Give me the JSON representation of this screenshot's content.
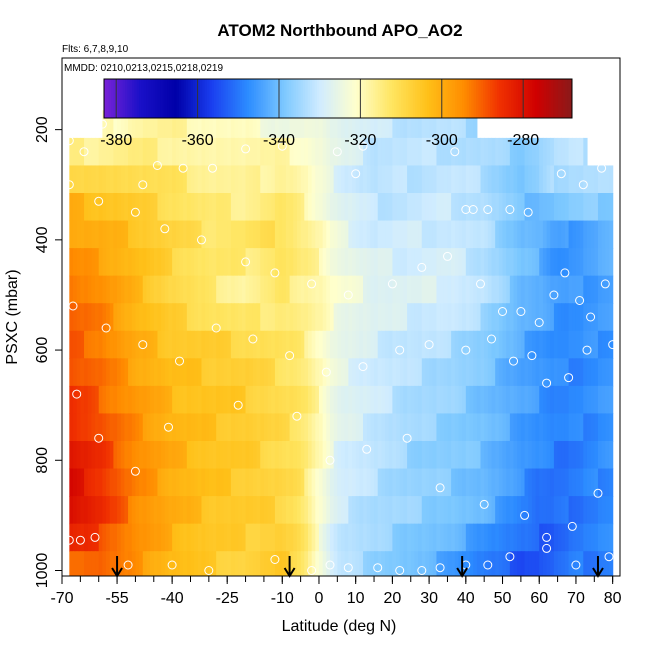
{
  "chart_data": {
    "type": "heatmap",
    "title": "ATOM2 Northbound APO_AO2",
    "annotations": [
      "Flts: 6,7,8,9,10",
      "MMDD: 0210,0213,0215,0218,0219"
    ],
    "xlabel": "Latitude (deg N)",
    "ylabel": "PSXC (mbar)",
    "xlim": [
      -70,
      82
    ],
    "ylim": [
      1010,
      70
    ],
    "y_reversed": true,
    "x_ticks": [
      -70,
      -55,
      -40,
      -25,
      -10,
      0,
      10,
      20,
      30,
      40,
      50,
      60,
      70,
      80
    ],
    "x_tick_labels": [
      "-70",
      "-55",
      "-40",
      "-25",
      "-10",
      "0",
      "10",
      "20",
      "30",
      "40",
      "50",
      "60",
      "70",
      "80"
    ],
    "y_ticks": [
      200,
      400,
      600,
      800,
      1000
    ],
    "y_tick_labels": [
      "200",
      "400",
      "600",
      "800",
      "1000"
    ],
    "colorbar": {
      "range": [
        -383,
        -268
      ],
      "ticks": [
        -380,
        -360,
        -340,
        -320,
        -300,
        -280
      ],
      "tick_labels": [
        "-380",
        "-360",
        "-340",
        "-320",
        "-300",
        "-280"
      ],
      "colors": [
        "#7a22d8",
        "#1a10c8",
        "#0000a8",
        "#1a3ff0",
        "#2c8cff",
        "#7cc8ff",
        "#d0ecff",
        "#ffffcc",
        "#ffe560",
        "#ffc018",
        "#ff8c00",
        "#f03000",
        "#d00000",
        "#8a1a1a"
      ]
    },
    "profile_markers_lat": [
      -55,
      -8,
      39,
      76
    ],
    "field_anchor_values": {
      "lat": [
        -68,
        -60,
        -50,
        -40,
        -30,
        -20,
        -10,
        -5,
        0,
        5,
        15,
        25,
        35,
        45,
        55,
        60,
        65,
        70,
        80
      ],
      "pressure": [
        200,
        300,
        400,
        500,
        600,
        700,
        800,
        900,
        980
      ],
      "apo": [
        [
          -320,
          -318,
          -314,
          -314,
          -316,
          -318,
          -321,
          -321,
          -322,
          -326,
          -330,
          -332,
          -333,
          -335,
          -335,
          -334,
          -333,
          -332,
          -330
        ],
        [
          -303,
          -305,
          -309,
          -312,
          -316,
          -318,
          -315,
          -318,
          -324,
          -328,
          -333,
          -332,
          -331,
          -333,
          -340,
          -338,
          -333,
          -333,
          -334
        ],
        [
          -298,
          -300,
          -303,
          -308,
          -312,
          -312,
          -310,
          -314,
          -318,
          -325,
          -330,
          -330,
          -330,
          -333,
          -340,
          -342,
          -348,
          -346,
          -342
        ],
        [
          -290,
          -294,
          -302,
          -309,
          -314,
          -318,
          -314,
          -316,
          -318,
          -322,
          -326,
          -328,
          -328,
          -332,
          -340,
          -342,
          -345,
          -346,
          -344
        ],
        [
          -290,
          -292,
          -300,
          -304,
          -306,
          -308,
          -312,
          -314,
          -320,
          -326,
          -330,
          -332,
          -334,
          -338,
          -344,
          -346,
          -348,
          -348,
          -346
        ],
        [
          -285,
          -290,
          -296,
          -302,
          -304,
          -306,
          -310,
          -312,
          -318,
          -326,
          -330,
          -334,
          -336,
          -340,
          -344,
          -346,
          -348,
          -348,
          -346
        ],
        [
          -280,
          -285,
          -294,
          -300,
          -304,
          -306,
          -310,
          -312,
          -320,
          -328,
          -332,
          -336,
          -338,
          -340,
          -346,
          -348,
          -350,
          -350,
          -346
        ],
        [
          -278,
          -284,
          -294,
          -300,
          -304,
          -306,
          -308,
          -312,
          -322,
          -330,
          -334,
          -336,
          -338,
          -342,
          -348,
          -352,
          -352,
          -350,
          -348
        ],
        [
          -290,
          -290,
          -296,
          -302,
          -306,
          -308,
          -306,
          -310,
          -322,
          -332,
          -336,
          -340,
          -344,
          -350,
          -354,
          -354,
          -352,
          -350,
          -348
        ]
      ]
    },
    "sample_points": [
      [
        -59,
        190
      ],
      [
        -68,
        220
      ],
      [
        -64,
        240
      ],
      [
        -44,
        265
      ],
      [
        -48,
        300
      ],
      [
        -37,
        270
      ],
      [
        -29,
        270
      ],
      [
        -20,
        235
      ],
      [
        -10,
        230
      ],
      [
        5,
        240
      ],
      [
        10,
        280
      ],
      [
        12,
        230
      ],
      [
        37,
        240
      ],
      [
        40,
        345
      ],
      [
        42,
        345
      ],
      [
        46,
        345
      ],
      [
        52,
        345
      ],
      [
        57,
        350
      ],
      [
        66,
        280
      ],
      [
        72,
        300
      ],
      [
        77,
        270
      ],
      [
        -68,
        300
      ],
      [
        -60,
        330
      ],
      [
        -50,
        350
      ],
      [
        -42,
        380
      ],
      [
        -32,
        400
      ],
      [
        -20,
        440
      ],
      [
        -12,
        460
      ],
      [
        -2,
        480
      ],
      [
        8,
        500
      ],
      [
        20,
        480
      ],
      [
        28,
        450
      ],
      [
        35,
        430
      ],
      [
        44,
        480
      ],
      [
        50,
        530
      ],
      [
        55,
        530
      ],
      [
        60,
        550
      ],
      [
        64,
        500
      ],
      [
        67,
        460
      ],
      [
        71,
        510
      ],
      [
        74,
        540
      ],
      [
        78,
        480
      ],
      [
        -67,
        520
      ],
      [
        -58,
        560
      ],
      [
        -48,
        590
      ],
      [
        -38,
        620
      ],
      [
        -28,
        560
      ],
      [
        -18,
        580
      ],
      [
        -8,
        610
      ],
      [
        2,
        640
      ],
      [
        12,
        630
      ],
      [
        22,
        600
      ],
      [
        30,
        590
      ],
      [
        40,
        600
      ],
      [
        47,
        580
      ],
      [
        53,
        620
      ],
      [
        58,
        610
      ],
      [
        62,
        660
      ],
      [
        68,
        650
      ],
      [
        73,
        600
      ],
      [
        80,
        590
      ],
      [
        -66,
        680
      ],
      [
        -60,
        760
      ],
      [
        -50,
        820
      ],
      [
        -41,
        740
      ],
      [
        -22,
        700
      ],
      [
        -6,
        720
      ],
      [
        3,
        800
      ],
      [
        13,
        780
      ],
      [
        24,
        760
      ],
      [
        33,
        850
      ],
      [
        45,
        880
      ],
      [
        56,
        900
      ],
      [
        62,
        940
      ],
      [
        69,
        920
      ],
      [
        76,
        860
      ],
      [
        -68,
        945
      ],
      [
        -65,
        945
      ],
      [
        -61,
        940
      ],
      [
        -52,
        990
      ],
      [
        -40,
        990
      ],
      [
        -30,
        1000
      ],
      [
        -12,
        980
      ],
      [
        -2,
        1000
      ],
      [
        3,
        990
      ],
      [
        8,
        995
      ],
      [
        16,
        995
      ],
      [
        22,
        1000
      ],
      [
        28,
        1000
      ],
      [
        33,
        995
      ],
      [
        40,
        990
      ],
      [
        46,
        990
      ],
      [
        52,
        975
      ],
      [
        62,
        960
      ],
      [
        70,
        990
      ],
      [
        79,
        975
      ]
    ]
  }
}
